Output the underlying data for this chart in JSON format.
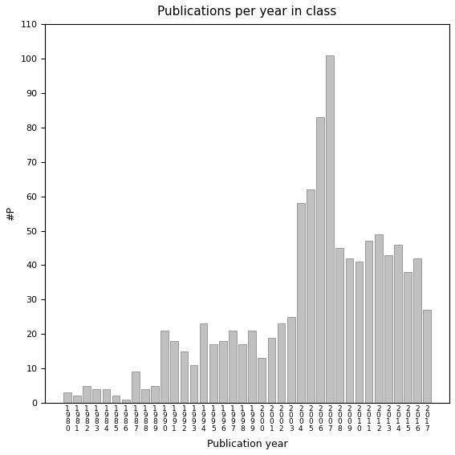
{
  "title": "Publications per year in class",
  "xlabel": "Publication year",
  "ylabel": "#P",
  "ylim": [
    0,
    110
  ],
  "yticks": [
    0,
    10,
    20,
    30,
    40,
    50,
    60,
    70,
    80,
    90,
    100,
    110
  ],
  "bar_color": "#c0c0c0",
  "bar_edgecolor": "#808080",
  "years": [
    1980,
    1981,
    1982,
    1983,
    1984,
    1985,
    1986,
    1987,
    1988,
    1989,
    1990,
    1991,
    1992,
    1993,
    1994,
    1995,
    1996,
    1997,
    1998,
    1999,
    2000,
    2001,
    2002,
    2003,
    2004,
    2005,
    2006,
    2007,
    2008,
    2009,
    2010,
    2011,
    2012,
    2013,
    2014,
    2015,
    2016,
    2017
  ],
  "values": [
    3,
    2,
    5,
    4,
    4,
    2,
    1,
    9,
    4,
    5,
    21,
    18,
    15,
    11,
    23,
    17,
    18,
    21,
    17,
    21,
    13,
    19,
    23,
    25,
    58,
    62,
    83,
    101,
    45,
    42,
    41,
    47,
    49,
    43,
    46,
    38,
    42,
    27
  ]
}
